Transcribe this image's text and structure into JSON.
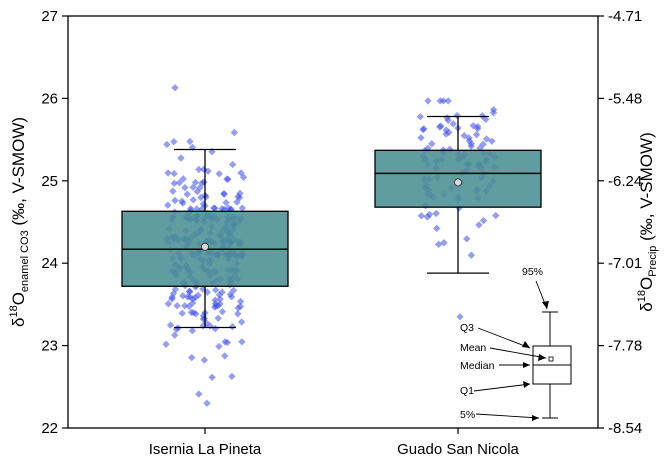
{
  "chart_data": {
    "type": "box",
    "categories": [
      "Isernia La Pineta",
      "Guado San Nicola"
    ],
    "y_left": {
      "label_prefix": "δ",
      "label_sup": "18",
      "label_main": "O",
      "label_sub": "enamel CO3",
      "label_suffix": " (‰, V-SMOW)",
      "range": [
        22,
        27
      ],
      "ticks": [
        "22",
        "23",
        "24",
        "25",
        "26",
        "27"
      ]
    },
    "y_right": {
      "label_prefix": "δ",
      "label_sup": "18",
      "label_main": "O",
      "label_sub": "Precip",
      "label_suffix": " (‰, V-SMOW)",
      "range": [
        -8.54,
        -4.71
      ],
      "ticks": [
        "-8.54",
        "-7.78",
        "-7.01",
        "-6.24",
        "-5.48",
        "-4.71"
      ]
    },
    "boxes": [
      {
        "category": "Isernia La Pineta",
        "whisker_low": 23.22,
        "q1": 23.72,
        "median": 24.17,
        "mean": 24.2,
        "q3": 24.63,
        "whisker_high": 25.38,
        "n_points": 280,
        "points_range": [
          22.3,
          26.13
        ]
      },
      {
        "category": "Guado San Nicola",
        "whisker_low": 23.88,
        "q1": 24.68,
        "median": 25.09,
        "mean": 24.98,
        "q3": 25.37,
        "whisker_high": 25.78,
        "n_points": 100,
        "points_range": [
          23.35,
          25.97
        ]
      }
    ],
    "legend": {
      "placement": "bottom-right",
      "labels": {
        "p95": "95%",
        "q3": "Q3",
        "mean": "Mean",
        "median": "Median",
        "q1": "Q1",
        "p5": "5%"
      }
    },
    "colors": {
      "box_fill": "#4a8f94",
      "points": "#3e4ef0",
      "axis": "#000000",
      "mean_marker_fill": "#d8d8d8"
    },
    "grid": false
  }
}
